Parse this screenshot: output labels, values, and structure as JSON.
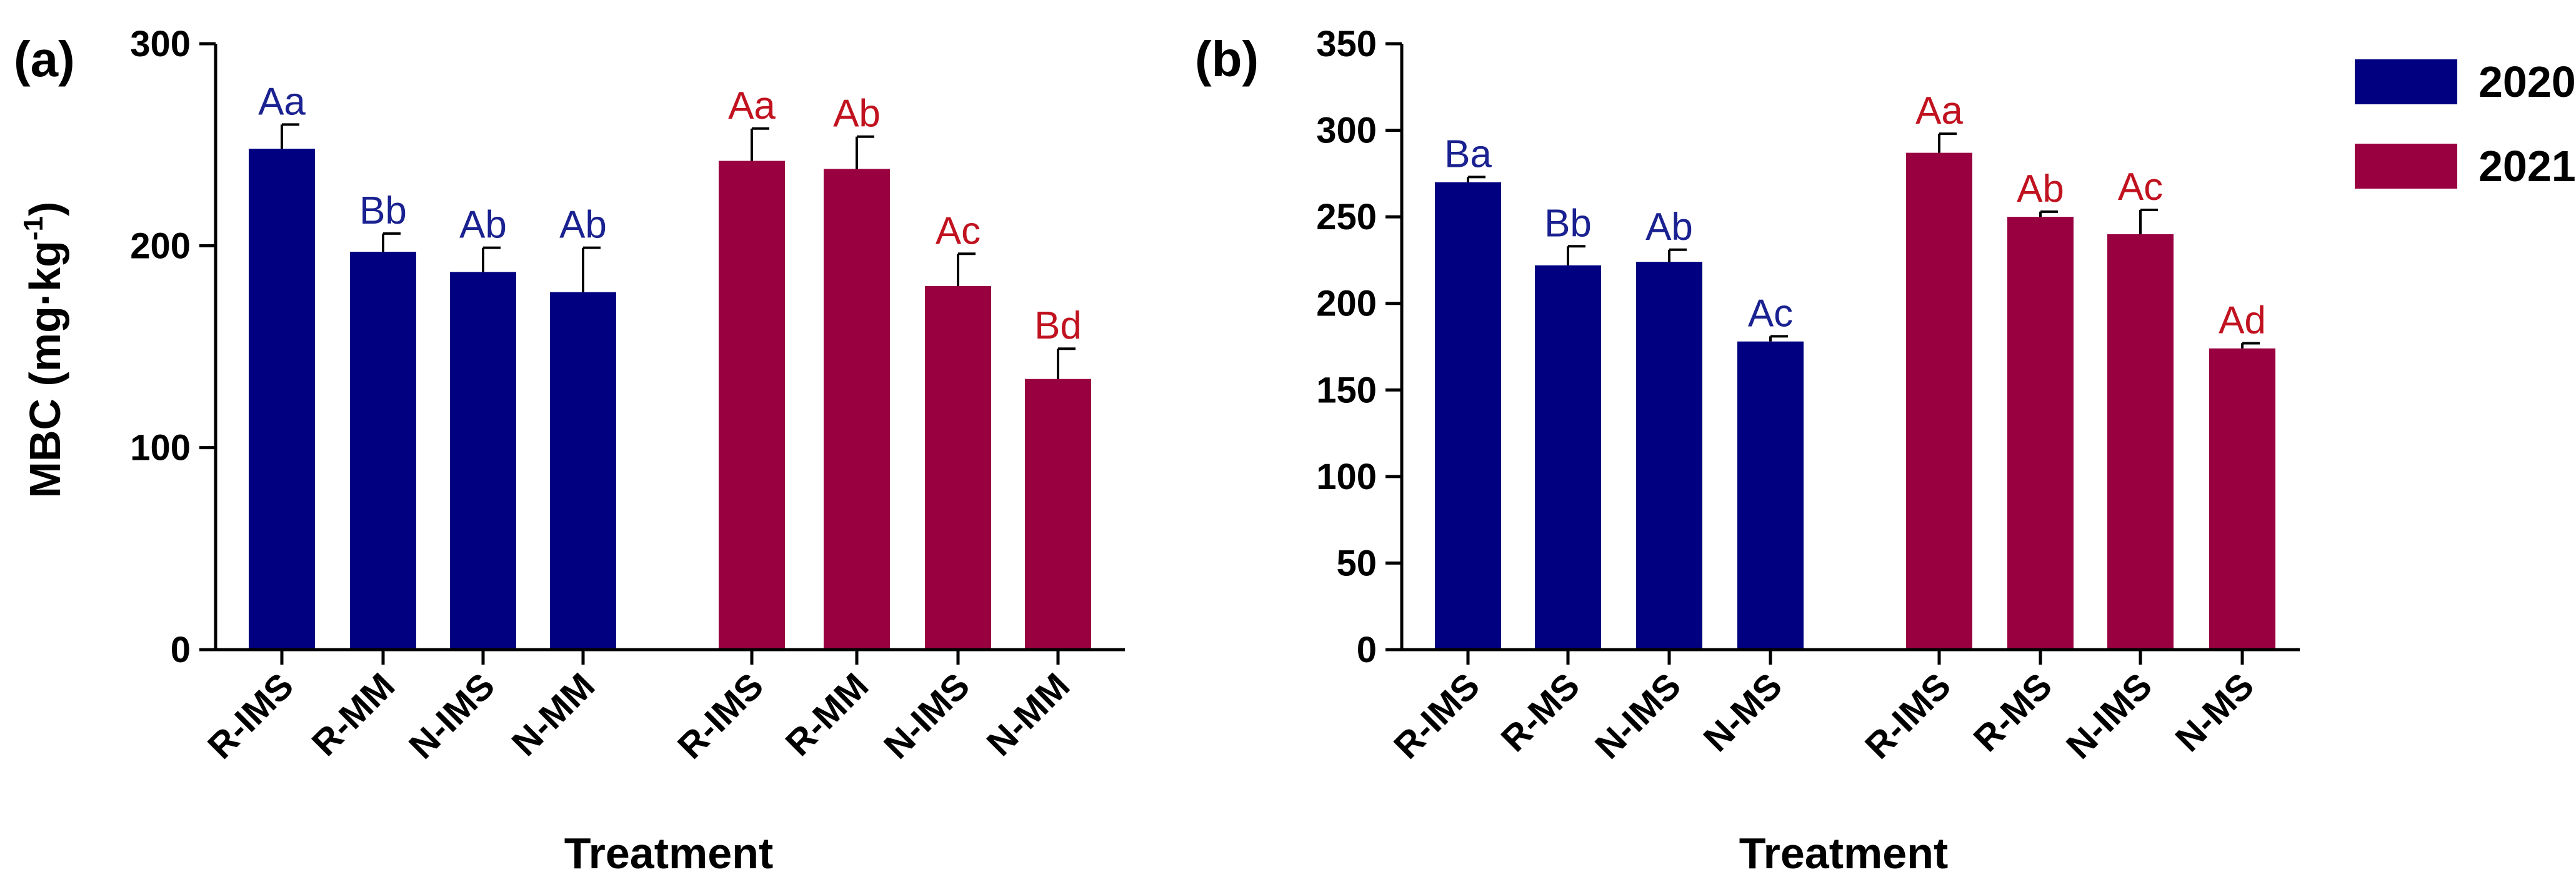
{
  "colors": {
    "2020": "#000080",
    "2021": "#990040",
    "label2020": "#1a2190",
    "label2021": "#c1121f"
  },
  "legend": {
    "items": [
      {
        "label": "2020",
        "color": "#000080"
      },
      {
        "label": "2021",
        "color": "#990040"
      }
    ]
  },
  "chart_data": [
    {
      "type": "bar",
      "panel": "(a)",
      "ylabel_main": "MBC (mg·kg",
      "ylabel_sup": "-1",
      "ylabel_close": ")",
      "xlabel": "Treatment",
      "ylim": [
        0,
        300
      ],
      "yticks": [
        0,
        100,
        200,
        300
      ],
      "groups": [
        {
          "name": "2020",
          "categories": [
            "R-IMS",
            "R-MM",
            "N-IMS",
            "N-MM"
          ],
          "values": [
            248,
            197,
            187,
            177
          ],
          "errors": [
            12,
            9,
            12,
            22
          ],
          "labels": [
            "Aa",
            "Bb",
            "Ab",
            "Ab"
          ]
        },
        {
          "name": "2021",
          "categories": [
            "R-IMS",
            "R-MM",
            "N-IMS",
            "N-MM"
          ],
          "values": [
            242,
            238,
            180,
            134
          ],
          "errors": [
            16,
            16,
            16,
            15
          ],
          "labels": [
            "Aa",
            "Ab",
            "Ac",
            "Bd"
          ]
        }
      ]
    },
    {
      "type": "bar",
      "panel": "(b)",
      "xlabel": "Treatment",
      "ylim": [
        0,
        350
      ],
      "yticks": [
        0,
        50,
        100,
        150,
        200,
        250,
        300,
        350
      ],
      "groups": [
        {
          "name": "2020",
          "categories": [
            "R-IMS",
            "R-MS",
            "N-IMS",
            "N-MS"
          ],
          "values": [
            270,
            222,
            224,
            178
          ],
          "errors": [
            3,
            11,
            7,
            3
          ],
          "labels": [
            "Ba",
            "Bb",
            "Ab",
            "Ac"
          ]
        },
        {
          "name": "2021",
          "categories": [
            "R-IMS",
            "R-MS",
            "N-IMS",
            "N-MS"
          ],
          "values": [
            287,
            250,
            240,
            174
          ],
          "errors": [
            11,
            3,
            14,
            3
          ],
          "labels": [
            "Aa",
            "Ab",
            "Ac",
            "Ad"
          ]
        }
      ]
    }
  ]
}
